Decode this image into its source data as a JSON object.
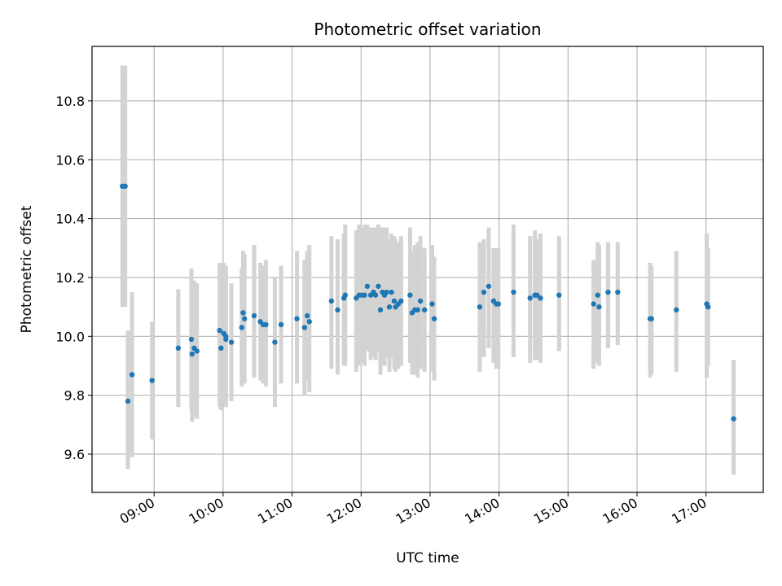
{
  "chart_data": {
    "type": "scatter",
    "title": "Photometric offset variation",
    "xlabel": "UTC time",
    "ylabel": "Photometric offset",
    "grid": true,
    "xlim": [
      8.1,
      17.83
    ],
    "ylim": [
      9.47,
      10.985
    ],
    "x_ticks": [
      9,
      10,
      11,
      12,
      13,
      14,
      15,
      16,
      17
    ],
    "x_tick_labels": [
      "09:00",
      "10:00",
      "11:00",
      "12:00",
      "13:00",
      "14:00",
      "15:00",
      "16:00",
      "17:00"
    ],
    "y_ticks": [
      9.6,
      9.8,
      10.0,
      10.2,
      10.4,
      10.6,
      10.8
    ],
    "y_tick_labels": [
      "9.6",
      "9.8",
      "10.0",
      "10.2",
      "10.4",
      "10.6",
      "10.8"
    ],
    "marker_color": "#1f77b4",
    "errorbar_color": "#d3d3d3",
    "series": [
      {
        "name": "offset",
        "points": [
          [
            8.54,
            10.51,
            10.1,
            10.92
          ],
          [
            8.58,
            10.51,
            10.1,
            10.92
          ],
          [
            8.62,
            9.78,
            9.55,
            10.02
          ],
          [
            8.68,
            9.87,
            9.59,
            10.15
          ],
          [
            8.97,
            9.85,
            9.65,
            10.05
          ],
          [
            9.35,
            9.96,
            9.76,
            10.16
          ],
          [
            9.54,
            9.99,
            9.75,
            10.23
          ],
          [
            9.55,
            9.94,
            9.71,
            10.18
          ],
          [
            9.58,
            9.96,
            9.73,
            10.19
          ],
          [
            9.62,
            9.95,
            9.72,
            10.18
          ],
          [
            9.95,
            10.02,
            9.76,
            10.25
          ],
          [
            9.97,
            9.96,
            9.75,
            10.24
          ],
          [
            10.01,
            10.01,
            9.77,
            10.25
          ],
          [
            10.04,
            10.0,
            9.76,
            10.24
          ],
          [
            10.04,
            9.99,
            9.76,
            10.23
          ],
          [
            10.12,
            9.98,
            9.78,
            10.18
          ],
          [
            10.27,
            10.03,
            9.83,
            10.23
          ],
          [
            10.29,
            10.08,
            9.85,
            10.29
          ],
          [
            10.31,
            10.06,
            9.84,
            10.28
          ],
          [
            10.45,
            10.07,
            9.86,
            10.31
          ],
          [
            10.54,
            10.05,
            9.85,
            10.25
          ],
          [
            10.58,
            10.04,
            9.84,
            10.24
          ],
          [
            10.62,
            10.04,
            9.83,
            10.26
          ],
          [
            10.75,
            9.98,
            9.76,
            10.2
          ],
          [
            10.84,
            10.04,
            9.84,
            10.24
          ],
          [
            11.07,
            10.06,
            9.84,
            10.29
          ],
          [
            11.18,
            10.03,
            9.8,
            10.26
          ],
          [
            11.22,
            10.07,
            9.85,
            10.29
          ],
          [
            11.25,
            10.05,
            9.81,
            10.31
          ],
          [
            11.57,
            10.12,
            9.89,
            10.34
          ],
          [
            11.66,
            10.09,
            9.87,
            10.33
          ],
          [
            11.75,
            10.13,
            9.9,
            10.35
          ],
          [
            11.77,
            10.14,
            9.9,
            10.38
          ],
          [
            11.93,
            10.13,
            9.88,
            10.36
          ],
          [
            11.97,
            10.14,
            9.9,
            10.38
          ],
          [
            12.01,
            10.14,
            9.91,
            10.37
          ],
          [
            12.05,
            10.14,
            9.9,
            10.38
          ],
          [
            12.09,
            10.17,
            9.95,
            10.38
          ],
          [
            12.14,
            10.14,
            9.92,
            10.37
          ],
          [
            12.18,
            10.15,
            9.93,
            10.37
          ],
          [
            12.21,
            10.14,
            9.92,
            10.37
          ],
          [
            12.25,
            10.17,
            9.95,
            10.38
          ],
          [
            12.28,
            10.09,
            9.87,
            10.32
          ],
          [
            12.31,
            10.15,
            9.93,
            10.37
          ],
          [
            12.34,
            10.14,
            9.9,
            10.37
          ],
          [
            12.37,
            10.15,
            9.93,
            10.37
          ],
          [
            12.41,
            10.1,
            9.88,
            10.33
          ],
          [
            12.44,
            10.15,
            9.93,
            10.35
          ],
          [
            12.48,
            10.12,
            9.89,
            10.34
          ],
          [
            12.5,
            10.1,
            9.88,
            10.33
          ],
          [
            12.54,
            10.11,
            9.89,
            10.32
          ],
          [
            12.58,
            10.12,
            9.9,
            10.34
          ],
          [
            12.71,
            10.14,
            9.91,
            10.37
          ],
          [
            12.74,
            10.08,
            9.87,
            10.29
          ],
          [
            12.78,
            10.09,
            9.87,
            10.31
          ],
          [
            12.82,
            10.09,
            9.86,
            10.32
          ],
          [
            12.86,
            10.12,
            9.89,
            10.34
          ],
          [
            12.92,
            10.09,
            9.88,
            10.3
          ],
          [
            13.03,
            10.11,
            9.88,
            10.31
          ],
          [
            13.06,
            10.06,
            9.85,
            10.27
          ],
          [
            13.72,
            10.1,
            9.88,
            10.32
          ],
          [
            13.78,
            10.15,
            9.93,
            10.33
          ],
          [
            13.85,
            10.17,
            9.96,
            10.37
          ],
          [
            13.92,
            10.12,
            9.91,
            10.3
          ],
          [
            13.96,
            10.11,
            9.89,
            10.3
          ],
          [
            13.99,
            10.11,
            9.89,
            10.3
          ],
          [
            14.21,
            10.15,
            9.93,
            10.38
          ],
          [
            14.45,
            10.13,
            9.91,
            10.34
          ],
          [
            14.52,
            10.14,
            9.92,
            10.36
          ],
          [
            14.55,
            10.14,
            9.92,
            10.33
          ],
          [
            14.6,
            10.13,
            9.91,
            10.35
          ],
          [
            14.87,
            10.14,
            9.95,
            10.34
          ],
          [
            15.37,
            10.11,
            9.89,
            10.26
          ],
          [
            15.43,
            10.14,
            9.91,
            10.32
          ],
          [
            15.45,
            10.1,
            9.9,
            10.31
          ],
          [
            15.58,
            10.15,
            9.96,
            10.32
          ],
          [
            15.72,
            10.15,
            9.97,
            10.32
          ],
          [
            16.19,
            10.06,
            9.86,
            10.25
          ],
          [
            16.21,
            10.06,
            9.87,
            10.24
          ],
          [
            16.57,
            10.09,
            9.88,
            10.29
          ],
          [
            17.01,
            10.11,
            9.86,
            10.35
          ],
          [
            17.03,
            10.1,
            9.9,
            10.3
          ],
          [
            17.4,
            9.72,
            9.53,
            9.92
          ]
        ]
      }
    ]
  }
}
